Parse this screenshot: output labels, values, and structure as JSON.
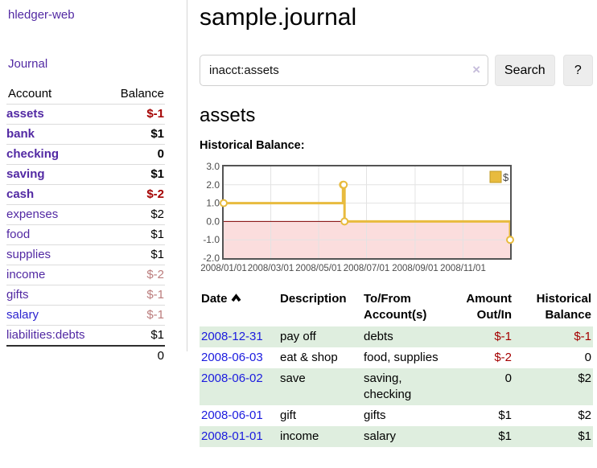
{
  "app": {
    "title": "hledger-web",
    "nav_journal": "Journal"
  },
  "colors": {
    "link_purple": "#5229a3",
    "link_blue": "#2c23cf",
    "date_link_blue": "#1b1bdf",
    "negative_strong": "#a40000",
    "negative_soft": "#bb7c7c",
    "row_green": "#dfeedf",
    "chart_line": "#e8bb3e",
    "chart_negative_fill": "#fbdddd",
    "chart_zero_line": "#800000"
  },
  "sidebar": {
    "header": {
      "account": "Account",
      "balance": "Balance"
    },
    "accounts": [
      {
        "name": "assets",
        "balance": "$-1",
        "depth": 0,
        "bold": true,
        "balance_color": "neg-strong"
      },
      {
        "name": "bank",
        "balance": "$1",
        "depth": 1,
        "bold": true,
        "balance_color": ""
      },
      {
        "name": "checking",
        "balance": "0",
        "depth": 2,
        "bold": true,
        "balance_color": ""
      },
      {
        "name": "saving",
        "balance": "$1",
        "depth": 2,
        "bold": true,
        "balance_color": ""
      },
      {
        "name": "cash",
        "balance": "$-2",
        "depth": 1,
        "bold": true,
        "balance_color": "neg-strong"
      },
      {
        "name": "expenses",
        "balance": "$2",
        "depth": 0,
        "bold": false,
        "balance_color": ""
      },
      {
        "name": "food",
        "balance": "$1",
        "depth": 1,
        "bold": false,
        "balance_color": ""
      },
      {
        "name": "supplies",
        "balance": "$1",
        "depth": 1,
        "bold": false,
        "balance_color": ""
      },
      {
        "name": "income",
        "balance": "$-2",
        "depth": 0,
        "bold": false,
        "balance_color": "neg-soft"
      },
      {
        "name": "gifts",
        "balance": "$-1",
        "depth": 1,
        "bold": false,
        "balance_color": "neg-soft"
      },
      {
        "name": "salary",
        "balance": "$-1",
        "depth": 1,
        "bold": false,
        "balance_color": "neg-soft",
        "link_blue": true
      },
      {
        "name": "liabilities:debts",
        "balance": "$1",
        "depth": 0,
        "bold": false,
        "balance_color": ""
      }
    ],
    "total": "0"
  },
  "header": {
    "title": "sample.journal"
  },
  "search": {
    "value": "inacct:assets",
    "clear_icon": "×",
    "button": "Search",
    "help_button": "?"
  },
  "account_page": {
    "title": "assets",
    "chart_label": "Historical Balance:"
  },
  "chart_data": {
    "type": "line",
    "step": true,
    "title": "Historical Balance",
    "series": [
      {
        "name": "$",
        "color": "#e8bb3e",
        "points": [
          [
            "2008-01-01",
            1
          ],
          [
            "2008-06-01",
            2
          ],
          [
            "2008-06-02",
            2
          ],
          [
            "2008-06-03",
            0
          ],
          [
            "2008-12-31",
            -1
          ]
        ]
      }
    ],
    "x_range": [
      "2008-01-01",
      "2008-12-31"
    ],
    "x_ticks": [
      "2008/01/01",
      "2008/03/01",
      "2008/05/01",
      "2008/07/01",
      "2008/09/01",
      "2008/11/01"
    ],
    "y_ticks": [
      3.0,
      2.0,
      1.0,
      0.0,
      -1.0,
      -2.0
    ],
    "ylim": [
      -2,
      3
    ],
    "grid": true,
    "legend": {
      "label": "$",
      "position": "top-right"
    },
    "negative_region_color": "#fbdddd",
    "zero_line_color": "#800000"
  },
  "register": {
    "columns": [
      "Date",
      "Description",
      "To/From Account(s)",
      "Amount Out/In",
      "Historical Balance"
    ],
    "sort": {
      "column": "Date",
      "direction": "asc"
    },
    "rows": [
      {
        "date": "2008-12-31",
        "description": "pay off",
        "accounts": "debts",
        "amount": "$-1",
        "balance": "$-1",
        "amount_color": "neg-strong",
        "balance_color": "neg-strong"
      },
      {
        "date": "2008-06-03",
        "description": "eat & shop",
        "accounts": "food, supplies",
        "amount": "$-2",
        "balance": "0",
        "amount_color": "neg-strong",
        "balance_color": ""
      },
      {
        "date": "2008-06-02",
        "description": "save",
        "accounts": "saving, checking",
        "amount": "0",
        "balance": "$2",
        "amount_color": "",
        "balance_color": ""
      },
      {
        "date": "2008-06-01",
        "description": "gift",
        "accounts": "gifts",
        "amount": "$1",
        "balance": "$2",
        "amount_color": "",
        "balance_color": ""
      },
      {
        "date": "2008-01-01",
        "description": "income",
        "accounts": "salary",
        "amount": "$1",
        "balance": "$1",
        "amount_color": "",
        "balance_color": ""
      }
    ]
  }
}
